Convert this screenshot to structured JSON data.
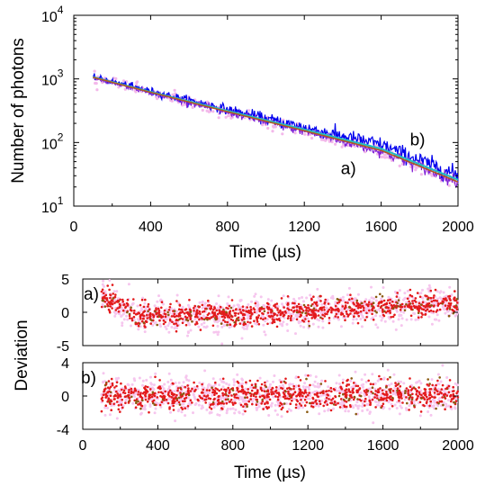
{
  "chart_data": [
    {
      "type": "line",
      "xlabel": "Time (µs)",
      "ylabel": "Number of photons",
      "xlim": [
        0,
        2000
      ],
      "ylim": [
        10,
        10000
      ],
      "yscale": "log",
      "xticks": [
        "0",
        "400",
        "800",
        "1200",
        "1600",
        "2000"
      ],
      "yticks": [
        {
          "base": "10",
          "exp": "1",
          "value": 10
        },
        {
          "base": "10",
          "exp": "2",
          "value": 100
        },
        {
          "base": "10",
          "exp": "3",
          "value": 1000
        },
        {
          "base": "10",
          "exp": "4",
          "value": 10000
        }
      ],
      "annotations": [
        {
          "text": "a)",
          "x": 1390,
          "y": 32
        },
        {
          "text": "b)",
          "x": 1750,
          "y": 90
        }
      ],
      "series": [
        {
          "label": "a)",
          "color": "#7f1fd6",
          "x": [
            100,
            400,
            800,
            1200,
            1600,
            2000
          ],
          "y": [
            1050,
            610,
            300,
            150,
            73,
            24
          ],
          "noise": 0.1
        },
        {
          "label": "b)",
          "color": "#0000ee",
          "x": [
            100,
            400,
            800,
            1200,
            1600,
            2000
          ],
          "y": [
            1080,
            640,
            330,
            172,
            92,
            30
          ],
          "noise": 0.14
        },
        {
          "label": "fit",
          "color": "#22c0c0",
          "x": [
            100,
            400,
            800,
            1200,
            1600,
            2000
          ],
          "y": [
            1070,
            625,
            315,
            160,
            80,
            26
          ]
        },
        {
          "label": "fit",
          "color": "#b05a20",
          "x": [
            100,
            400,
            800,
            1200,
            1600,
            2000
          ],
          "y": [
            1060,
            615,
            305,
            153,
            75,
            24
          ]
        }
      ],
      "grid": false
    },
    {
      "type": "scatter",
      "label": "a)",
      "xlim": [
        0,
        2000
      ],
      "ylim": [
        -5,
        5
      ],
      "xticks": [
        "0",
        "400",
        "800",
        "1200",
        "1600",
        "2000"
      ],
      "yticks": [
        "-5",
        "0",
        "5"
      ],
      "x_range": [
        100,
        2000
      ],
      "trend": [
        {
          "x": 100,
          "y": 2.5
        },
        {
          "x": 300,
          "y": -0.6
        },
        {
          "x": 800,
          "y": -0.3
        },
        {
          "x": 1200,
          "y": 0.2
        },
        {
          "x": 1600,
          "y": 0.8
        },
        {
          "x": 2000,
          "y": 1.3
        }
      ],
      "spread": 1.3,
      "point_color": "#e31a1c",
      "band_color": "#f6c6ee"
    },
    {
      "type": "scatter",
      "label": "b)",
      "xlim": [
        0,
        2000
      ],
      "ylim": [
        -4,
        4
      ],
      "xticks": [
        "0",
        "400",
        "800",
        "1200",
        "1600",
        "2000"
      ],
      "yticks": [
        "-4",
        "0",
        "4"
      ],
      "x_range": [
        100,
        2000
      ],
      "trend": [
        {
          "x": 100,
          "y": 0.1
        },
        {
          "x": 2000,
          "y": 0.1
        }
      ],
      "spread": 1.2,
      "point_color": "#e31a1c",
      "band_color": "#f6c6ee"
    }
  ],
  "bottom_xlabel": "Time (µs)",
  "bottom_ylabel": "Deviation"
}
